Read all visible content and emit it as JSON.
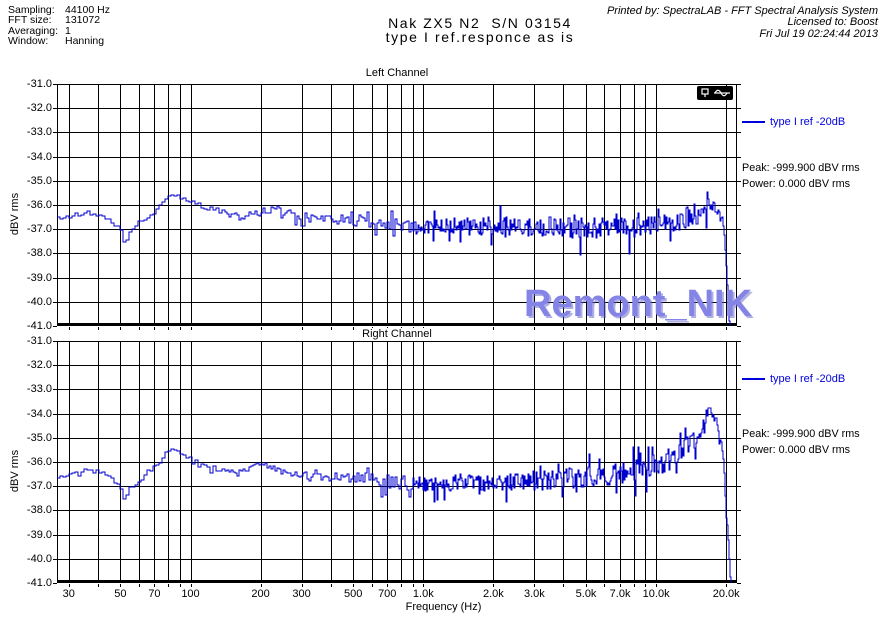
{
  "header": {
    "params": [
      {
        "label": "Sampling:",
        "value": "44100 Hz"
      },
      {
        "label": "FFT size:",
        "value": "131072"
      },
      {
        "label": "Averaging:",
        "value": "1"
      },
      {
        "label": "Window:",
        "value": "Hanning"
      }
    ],
    "title_line1": "Nak ZX5 N2  S/N 03154",
    "title_line2": "type I ref.responce as is",
    "printed_by": "Printed by: SpectraLAB - FFT Spectral Analysis System",
    "licensed_to": "Licensed to: Boost",
    "date": "Fri Jul 19 02:24:44 2013"
  },
  "watermark": {
    "text": "Remont_NIK",
    "color": "#8484e6"
  },
  "colors": {
    "trace": "#0000cc",
    "legend_text": "#0000dd",
    "grid": "#000000"
  },
  "axes": {
    "x": {
      "scale": "log",
      "min": 26.7,
      "max": 22250,
      "grid": [
        30,
        40,
        50,
        60,
        70,
        80,
        90,
        100,
        200,
        300,
        400,
        500,
        600,
        700,
        800,
        900,
        1000,
        2000,
        3000,
        4000,
        5000,
        6000,
        7000,
        8000,
        9000,
        10000,
        20000
      ],
      "ticks": [
        {
          "f": 30,
          "label": "30"
        },
        {
          "f": 50,
          "label": "50"
        },
        {
          "f": 70,
          "label": "70"
        },
        {
          "f": 100,
          "label": "100"
        },
        {
          "f": 200,
          "label": "200"
        },
        {
          "f": 300,
          "label": "300"
        },
        {
          "f": 500,
          "label": "500"
        },
        {
          "f": 700,
          "label": "700"
        },
        {
          "f": 1000,
          "label": "1.0k"
        },
        {
          "f": 2000,
          "label": "2.0k"
        },
        {
          "f": 3000,
          "label": "3.0k"
        },
        {
          "f": 5000,
          "label": "5.0k"
        },
        {
          "f": 7000,
          "label": "7.0k"
        },
        {
          "f": 10000,
          "label": "10.0k"
        },
        {
          "f": 20000,
          "label": "20.0k"
        }
      ],
      "label": "Frequency (Hz)"
    },
    "y": {
      "min": -41,
      "max": -31,
      "tick_labels": [
        "-31.0",
        "-32.0",
        "-33.0",
        "-34.0",
        "-35.0",
        "-36.0",
        "-37.0",
        "-38.0",
        "-39.0",
        "-40.0",
        "-41.0"
      ],
      "label": "dBV rms"
    }
  },
  "chart_data": [
    {
      "type": "line",
      "title": "Left Channel",
      "xscale": "log",
      "xlim": [
        26.7,
        22250
      ],
      "ylim": [
        -41,
        -31
      ],
      "xlabel": "Frequency (Hz)",
      "ylabel": "dBV rms",
      "legend": "type I ref -20dB",
      "peak_text": "Peak: -999.900 dBV rms",
      "power_text": "Power: 0.000 dBV rms",
      "series": [
        {
          "name": "type I ref -20dB",
          "color": "#0000cc",
          "max_db": -35.35,
          "anchors_f_db": [
            [
              26.7,
              -36.55
            ],
            [
              30,
              -36.45
            ],
            [
              34,
              -36.33
            ],
            [
              38,
              -36.35
            ],
            [
              42,
              -36.5
            ],
            [
              46,
              -36.72
            ],
            [
              50,
              -37.1
            ],
            [
              51,
              -37.5
            ],
            [
              52.5,
              -37.5
            ],
            [
              53.5,
              -37.1
            ],
            [
              56,
              -36.95
            ],
            [
              60,
              -36.7
            ],
            [
              65,
              -36.45
            ],
            [
              70,
              -36.25
            ],
            [
              74,
              -36.0
            ],
            [
              78,
              -35.7
            ],
            [
              81,
              -35.52
            ],
            [
              85,
              -35.55
            ],
            [
              90,
              -35.68
            ],
            [
              95,
              -35.8
            ],
            [
              100,
              -35.9
            ],
            [
              108,
              -36.0
            ],
            [
              118,
              -36.12
            ],
            [
              130,
              -36.25
            ],
            [
              145,
              -36.4
            ],
            [
              160,
              -36.45
            ],
            [
              175,
              -36.4
            ],
            [
              190,
              -36.35
            ],
            [
              210,
              -36.2
            ],
            [
              230,
              -36.1
            ],
            [
              250,
              -36.15
            ],
            [
              270,
              -36.35
            ],
            [
              300,
              -36.5
            ],
            [
              340,
              -36.5
            ],
            [
              380,
              -36.55
            ],
            [
              430,
              -36.6
            ],
            [
              500,
              -36.65
            ],
            [
              570,
              -36.7
            ],
            [
              650,
              -36.75
            ],
            [
              750,
              -36.85
            ],
            [
              900,
              -36.9
            ],
            [
              1100,
              -36.9
            ],
            [
              1400,
              -36.9
            ],
            [
              1800,
              -36.88
            ],
            [
              2200,
              -36.9
            ],
            [
              2700,
              -36.9
            ],
            [
              3300,
              -36.9
            ],
            [
              4000,
              -36.92
            ],
            [
              5000,
              -36.95
            ],
            [
              6000,
              -36.95
            ],
            [
              7000,
              -36.95
            ],
            [
              8000,
              -36.95
            ],
            [
              9000,
              -36.9
            ],
            [
              10000,
              -36.85
            ],
            [
              11000,
              -36.8
            ],
            [
              12000,
              -36.7
            ],
            [
              13000,
              -36.55
            ],
            [
              14000,
              -36.45
            ],
            [
              15000,
              -36.4
            ],
            [
              16000,
              -36.3
            ],
            [
              16450,
              -36.1
            ],
            [
              16550,
              -35.45
            ],
            [
              16700,
              -36.1
            ],
            [
              17200,
              -36.0
            ],
            [
              17600,
              -36.05
            ],
            [
              18000,
              -36.15
            ],
            [
              18500,
              -36.3
            ],
            [
              19000,
              -36.5
            ],
            [
              19300,
              -36.8
            ],
            [
              19600,
              -37.4
            ],
            [
              19800,
              -38.0
            ],
            [
              20000,
              -38.6
            ],
            [
              20200,
              -39.4
            ],
            [
              20400,
              -40.2
            ],
            [
              20600,
              -41.0
            ],
            [
              20800,
              -41.8
            ]
          ]
        }
      ],
      "noise": {
        "seed": 90125,
        "profile_f_amp": [
          [
            27,
            0.08
          ],
          [
            50,
            0.08
          ],
          [
            80,
            0.08
          ],
          [
            120,
            0.1
          ],
          [
            200,
            0.13
          ],
          [
            350,
            0.18
          ],
          [
            600,
            0.24
          ],
          [
            1000,
            0.32
          ],
          [
            2000,
            0.38
          ],
          [
            4000,
            0.42
          ],
          [
            8000,
            0.45
          ],
          [
            12000,
            0.45
          ],
          [
            16000,
            0.4
          ],
          [
            18500,
            0.3
          ],
          [
            19300,
            0.15
          ],
          [
            20000,
            0.06
          ],
          [
            22250,
            0.03
          ]
        ],
        "down_p": 0.05,
        "down_gain": 1.8,
        "up_p": 0.04,
        "up_gain": 1.3
      }
    },
    {
      "type": "line",
      "title": "Right Channel",
      "xscale": "log",
      "xlim": [
        26.7,
        22250
      ],
      "ylim": [
        -41,
        -31
      ],
      "xlabel": "Frequency (Hz)",
      "ylabel": "dBV rms",
      "legend": "type I ref -20dB",
      "peak_text": "Peak: -999.900 dBV rms",
      "power_text": "Power: 0.000 dBV rms",
      "series": [
        {
          "name": "type I ref -20dB",
          "color": "#0000cc",
          "max_db": -33.78,
          "anchors_f_db": [
            [
              26.7,
              -36.6
            ],
            [
              30,
              -36.5
            ],
            [
              33,
              -36.38
            ],
            [
              36,
              -36.3
            ],
            [
              40,
              -36.42
            ],
            [
              44,
              -36.6
            ],
            [
              48,
              -36.9
            ],
            [
              50,
              -37.1
            ],
            [
              51,
              -37.55
            ],
            [
              52.5,
              -37.55
            ],
            [
              53.5,
              -37.1
            ],
            [
              56,
              -37.0
            ],
            [
              60,
              -36.75
            ],
            [
              65,
              -36.5
            ],
            [
              70,
              -36.2
            ],
            [
              74,
              -35.95
            ],
            [
              78,
              -35.65
            ],
            [
              81,
              -35.5
            ],
            [
              85,
              -35.55
            ],
            [
              90,
              -35.65
            ],
            [
              96,
              -35.85
            ],
            [
              105,
              -36.0
            ],
            [
              115,
              -36.15
            ],
            [
              128,
              -36.3
            ],
            [
              142,
              -36.4
            ],
            [
              158,
              -36.48
            ],
            [
              172,
              -36.35
            ],
            [
              185,
              -36.15
            ],
            [
              200,
              -36.05
            ],
            [
              215,
              -36.15
            ],
            [
              235,
              -36.3
            ],
            [
              260,
              -36.45
            ],
            [
              300,
              -36.55
            ],
            [
              350,
              -36.6
            ],
            [
              420,
              -36.6
            ],
            [
              500,
              -36.65
            ],
            [
              600,
              -36.7
            ],
            [
              700,
              -36.8
            ],
            [
              850,
              -36.9
            ],
            [
              1000,
              -36.9
            ],
            [
              1300,
              -36.88
            ],
            [
              1700,
              -36.85
            ],
            [
              2100,
              -36.85
            ],
            [
              2600,
              -36.8
            ],
            [
              3200,
              -36.75
            ],
            [
              4000,
              -36.7
            ],
            [
              5000,
              -36.6
            ],
            [
              6000,
              -36.55
            ],
            [
              7000,
              -36.45
            ],
            [
              8000,
              -36.35
            ],
            [
              9000,
              -36.25
            ],
            [
              10000,
              -36.1
            ],
            [
              11000,
              -35.95
            ],
            [
              12000,
              -35.75
            ],
            [
              13000,
              -35.55
            ],
            [
              14000,
              -35.3
            ],
            [
              15000,
              -35.0
            ],
            [
              15800,
              -34.6
            ],
            [
              16400,
              -34.15
            ],
            [
              16900,
              -33.95
            ],
            [
              17300,
              -34.05
            ],
            [
              17700,
              -34.3
            ],
            [
              18100,
              -34.5
            ],
            [
              18500,
              -34.9
            ],
            [
              18900,
              -35.3
            ],
            [
              19200,
              -35.45
            ],
            [
              19500,
              -36.2
            ],
            [
              19700,
              -37.3
            ],
            [
              19900,
              -38.3
            ],
            [
              20100,
              -38.5
            ],
            [
              20400,
              -39.3
            ],
            [
              20600,
              -40.2
            ],
            [
              20800,
              -41.0
            ],
            [
              21000,
              -41.9
            ]
          ]
        }
      ],
      "noise": {
        "seed": 777421,
        "profile_f_amp": [
          [
            27,
            0.08
          ],
          [
            50,
            0.08
          ],
          [
            80,
            0.08
          ],
          [
            120,
            0.1
          ],
          [
            200,
            0.13
          ],
          [
            350,
            0.18
          ],
          [
            600,
            0.24
          ],
          [
            1000,
            0.32
          ],
          [
            2000,
            0.38
          ],
          [
            4000,
            0.42
          ],
          [
            8000,
            0.45
          ],
          [
            12000,
            0.45
          ],
          [
            16000,
            0.4
          ],
          [
            18500,
            0.3
          ],
          [
            19300,
            0.15
          ],
          [
            20000,
            0.06
          ],
          [
            22250,
            0.03
          ]
        ],
        "down_p": 0.05,
        "down_gain": 1.8,
        "up_p": 0.04,
        "up_gain": 1.3
      }
    }
  ]
}
